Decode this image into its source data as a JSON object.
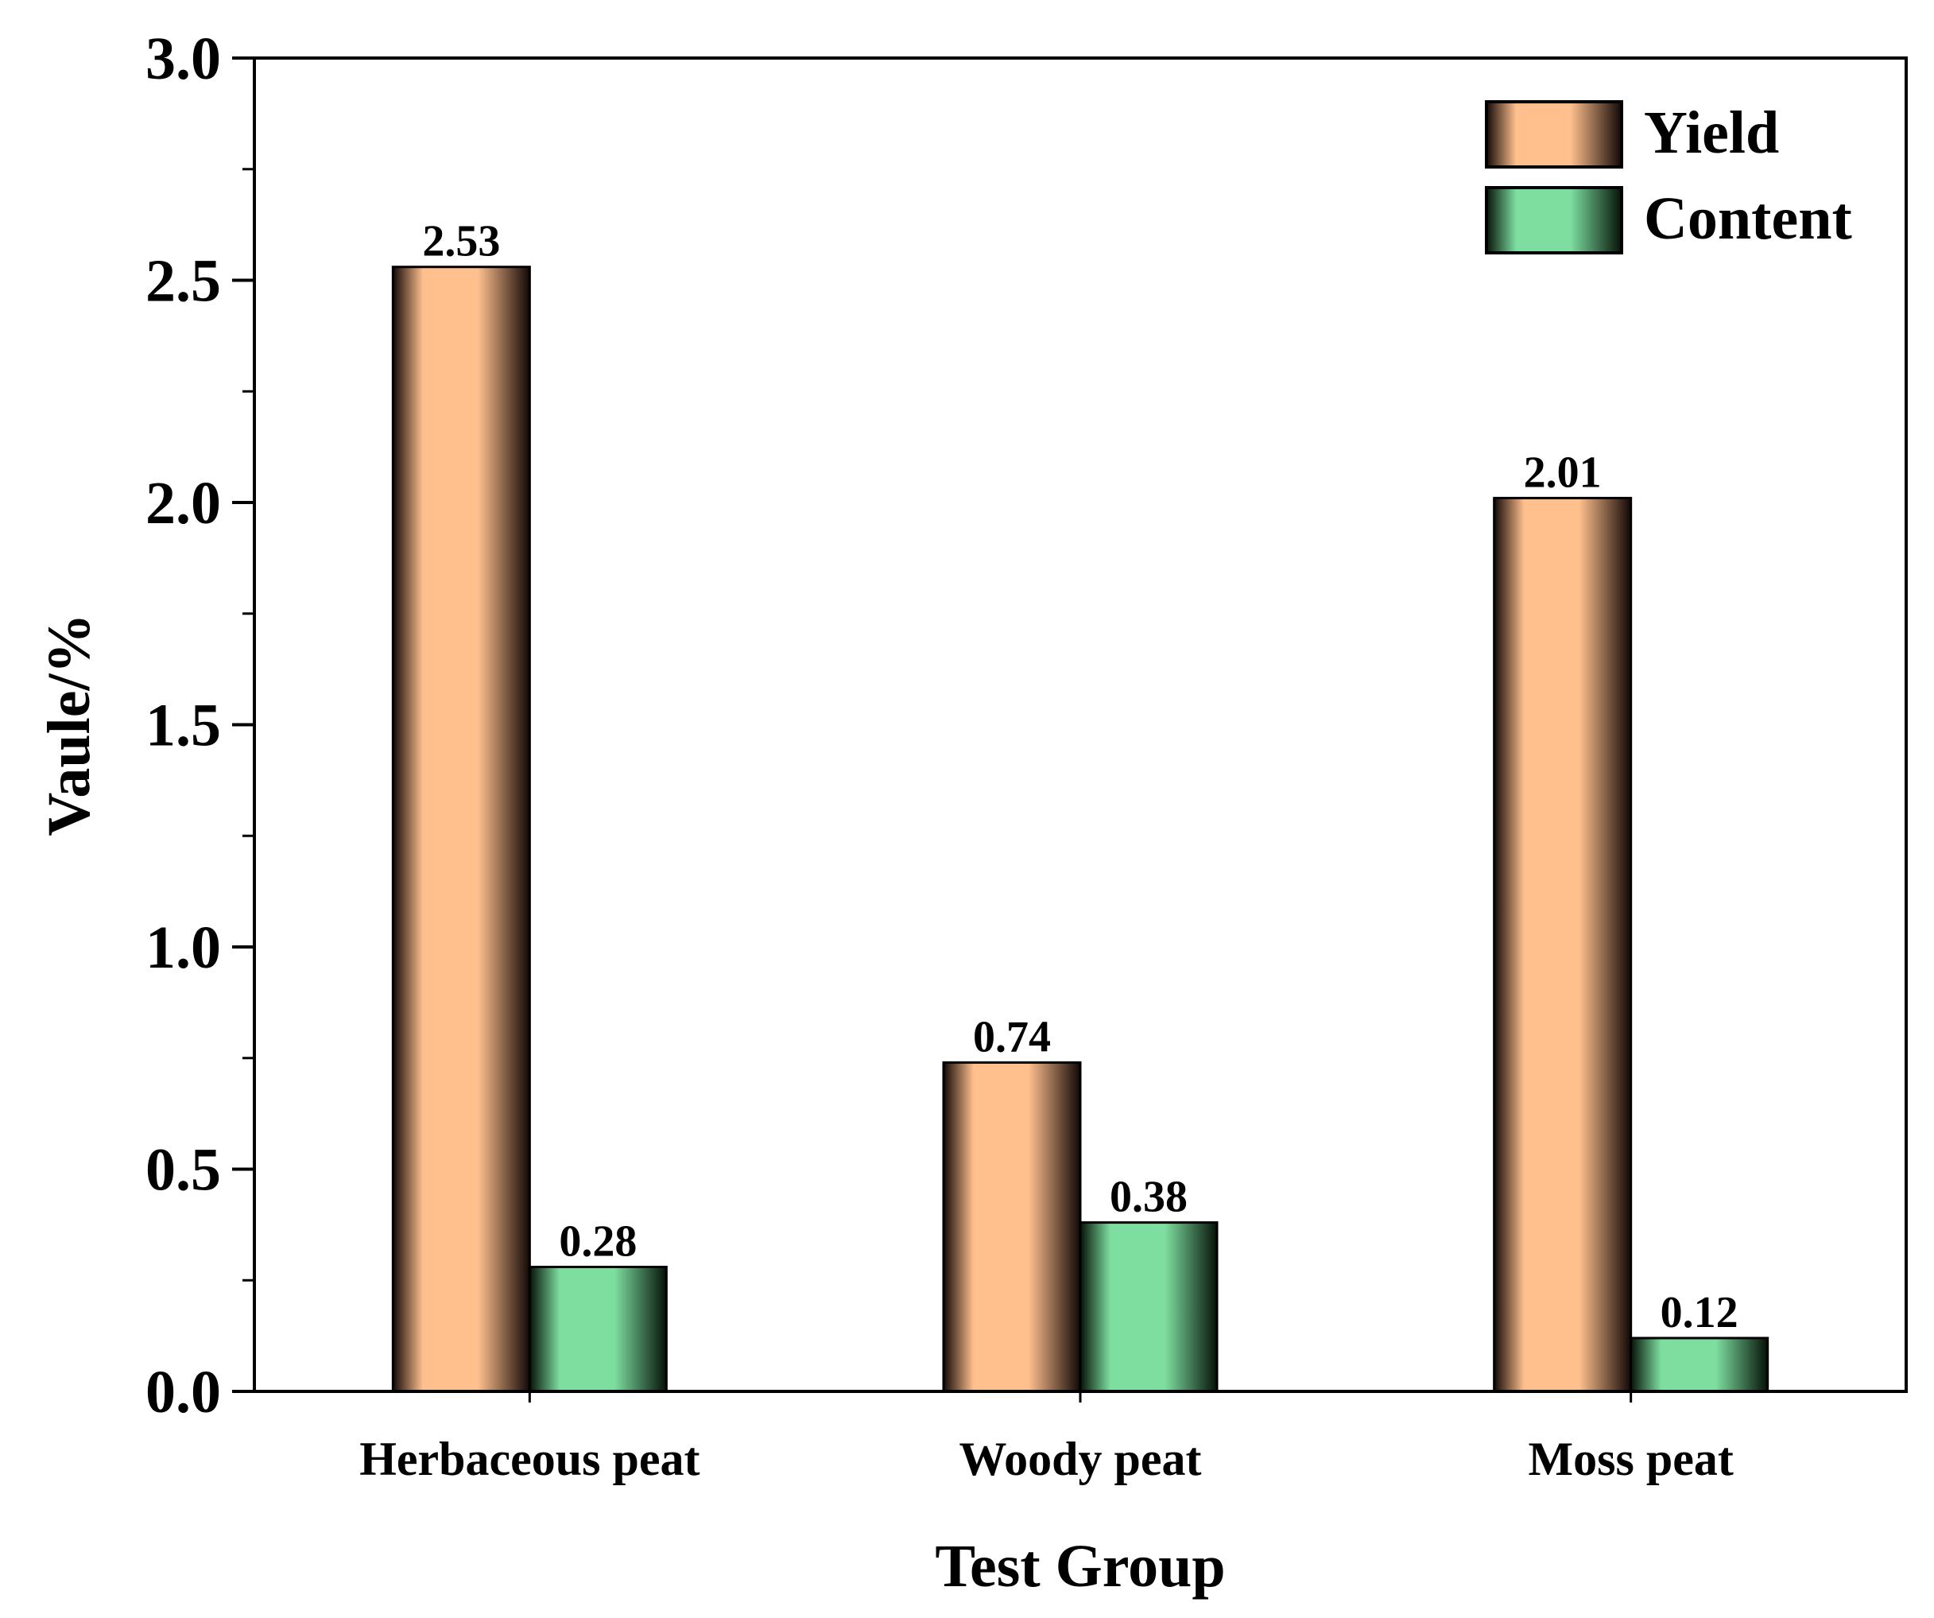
{
  "chart_data": {
    "type": "bar",
    "title": "",
    "xlabel": "Test Group",
    "ylabel": "Vaule/%",
    "ylim": [
      0,
      3.0
    ],
    "yticks": [
      "0.0",
      "0.5",
      "1.0",
      "1.5",
      "2.0",
      "2.5",
      "3.0"
    ],
    "grid": false,
    "legend_position": "top-right",
    "categories": [
      "Herbaceous peat",
      "Woody peat",
      "Moss peat"
    ],
    "series": [
      {
        "name": "Yield",
        "values": [
          2.53,
          0.74,
          2.01
        ],
        "labels": [
          "2.53",
          "0.74",
          "2.01"
        ],
        "color": "#FFC08E"
      },
      {
        "name": "Content",
        "values": [
          0.28,
          0.38,
          0.12
        ],
        "labels": [
          "0.28",
          "0.38",
          "0.12"
        ],
        "color": "#7DDEA0"
      }
    ]
  }
}
